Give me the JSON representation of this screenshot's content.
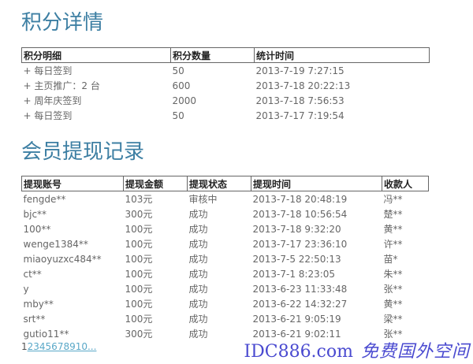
{
  "points": {
    "title": "积分详情",
    "headers": [
      "积分明细",
      "积分数量",
      "统计时间"
    ],
    "rows": [
      [
        "+ 每日签到",
        "50",
        "2013-7-19 7:27:15"
      ],
      [
        "+ 主页推广：2 台",
        "600",
        "2013-7-18 20:22:13"
      ],
      [
        "+ 周年庆签到",
        "2000",
        "2013-7-18 7:56:53"
      ],
      [
        "+ 每日签到",
        "50",
        "2013-7-17 7:19:54"
      ]
    ]
  },
  "withdraw": {
    "title": "会员提现记录",
    "headers": [
      "提现账号",
      "提现金额",
      "提现状态",
      "提现时间",
      "收款人"
    ],
    "rows": [
      [
        "fengde**",
        "103元",
        "审核中",
        "2013-7-18 20:48:19",
        "冯**"
      ],
      [
        "bjc**",
        "300元",
        "成功",
        "2013-7-18 10:56:54",
        "楚**"
      ],
      [
        "100**",
        "100元",
        "成功",
        "2013-7-18 9:32:20",
        "黄**"
      ],
      [
        "wenge1384**",
        "100元",
        "成功",
        "2013-7-17 23:36:10",
        "许**"
      ],
      [
        "miaoyuzxc484**",
        "100元",
        "成功",
        "2013-7-5 22:50:13",
        "苗*"
      ],
      [
        "ct**",
        "100元",
        "成功",
        "2013-7-1 8:23:05",
        "朱**"
      ],
      [
        "y",
        "100元",
        "成功",
        "2013-6-23 11:33:48",
        "张**"
      ],
      [
        "mby**",
        "100元",
        "成功",
        "2013-6-22 14:32:27",
        "黄**"
      ],
      [
        "srt**",
        "100元",
        "成功",
        "2013-6-21 9:05:19",
        "梁**"
      ],
      [
        "gutio11**",
        "300元",
        "成功",
        "2013-6-21 9:02:11",
        "张**"
      ]
    ]
  },
  "pager": {
    "current": "1",
    "links": "2345678910..."
  },
  "watermark": {
    "line1": "IDC886.com",
    "line2": "免费国外空间"
  }
}
